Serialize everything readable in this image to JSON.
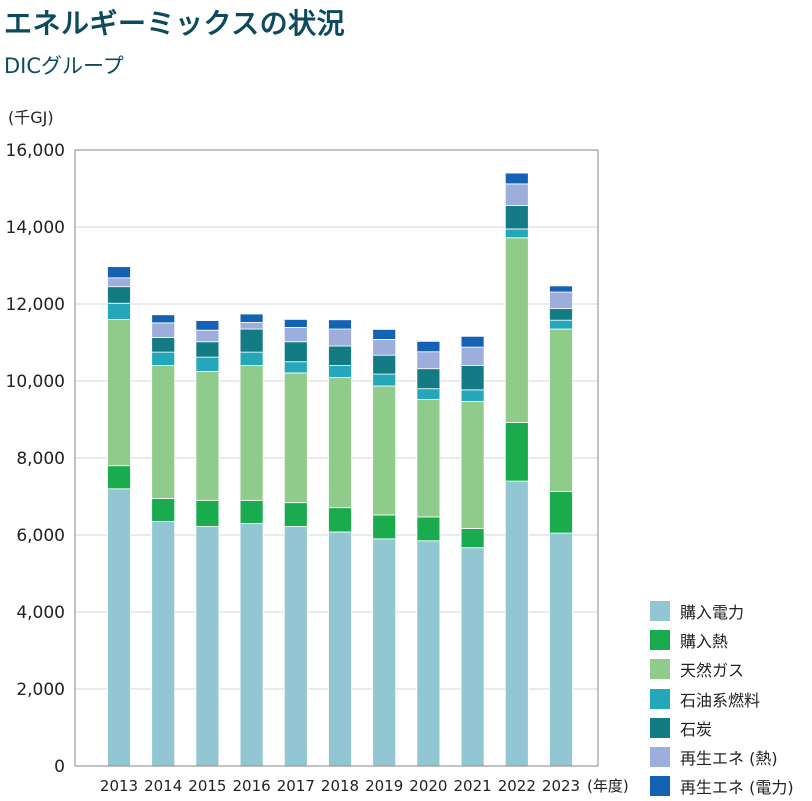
{
  "chart_data": {
    "type": "bar",
    "stacked": true,
    "title": "エネルギーミックスの状況",
    "subtitle": "DICグループ",
    "ylabel": "(千GJ)",
    "xlabel": "(年度)",
    "ylim": [
      0,
      16000
    ],
    "yticks": [
      0,
      2000,
      4000,
      6000,
      8000,
      10000,
      12000,
      14000,
      16000
    ],
    "ytick_labels": [
      "0",
      "2,000",
      "4,000",
      "6,000",
      "8,000",
      "10,000",
      "12,000",
      "14,000",
      "16,000"
    ],
    "categories": [
      "2013",
      "2014",
      "2015",
      "2016",
      "2017",
      "2018",
      "2019",
      "2020",
      "2021",
      "2022",
      "2023"
    ],
    "grid": true,
    "legend_position": "bottom-right",
    "series": [
      {
        "name": "購入電力",
        "color": "#92c6d3",
        "values": [
          7200,
          6350,
          6220,
          6300,
          6220,
          6080,
          5900,
          5850,
          5670,
          7400,
          6050
        ]
      },
      {
        "name": "購入熱",
        "color": "#1aab4e",
        "values": [
          600,
          600,
          680,
          600,
          620,
          630,
          620,
          620,
          500,
          1520,
          1080
        ]
      },
      {
        "name": "天然ガス",
        "color": "#8fcb8b",
        "values": [
          3800,
          3450,
          3350,
          3500,
          3370,
          3380,
          3350,
          3050,
          3300,
          4800,
          4220
        ]
      },
      {
        "name": "石油系燃料",
        "color": "#25a7bb",
        "values": [
          420,
          350,
          370,
          350,
          290,
          310,
          310,
          280,
          300,
          230,
          230
        ]
      },
      {
        "name": "石炭",
        "color": "#137b83",
        "values": [
          430,
          380,
          400,
          600,
          520,
          510,
          490,
          520,
          630,
          610,
          300
        ]
      },
      {
        "name": "再生エネ (熱)",
        "color": "#9eaedc",
        "values": [
          230,
          380,
          300,
          170,
          370,
          440,
          410,
          440,
          480,
          560,
          430
        ]
      },
      {
        "name": "再生エネ (電力)",
        "color": "#1462b3",
        "values": [
          290,
          210,
          250,
          220,
          210,
          240,
          260,
          270,
          280,
          280,
          160
        ]
      }
    ]
  }
}
